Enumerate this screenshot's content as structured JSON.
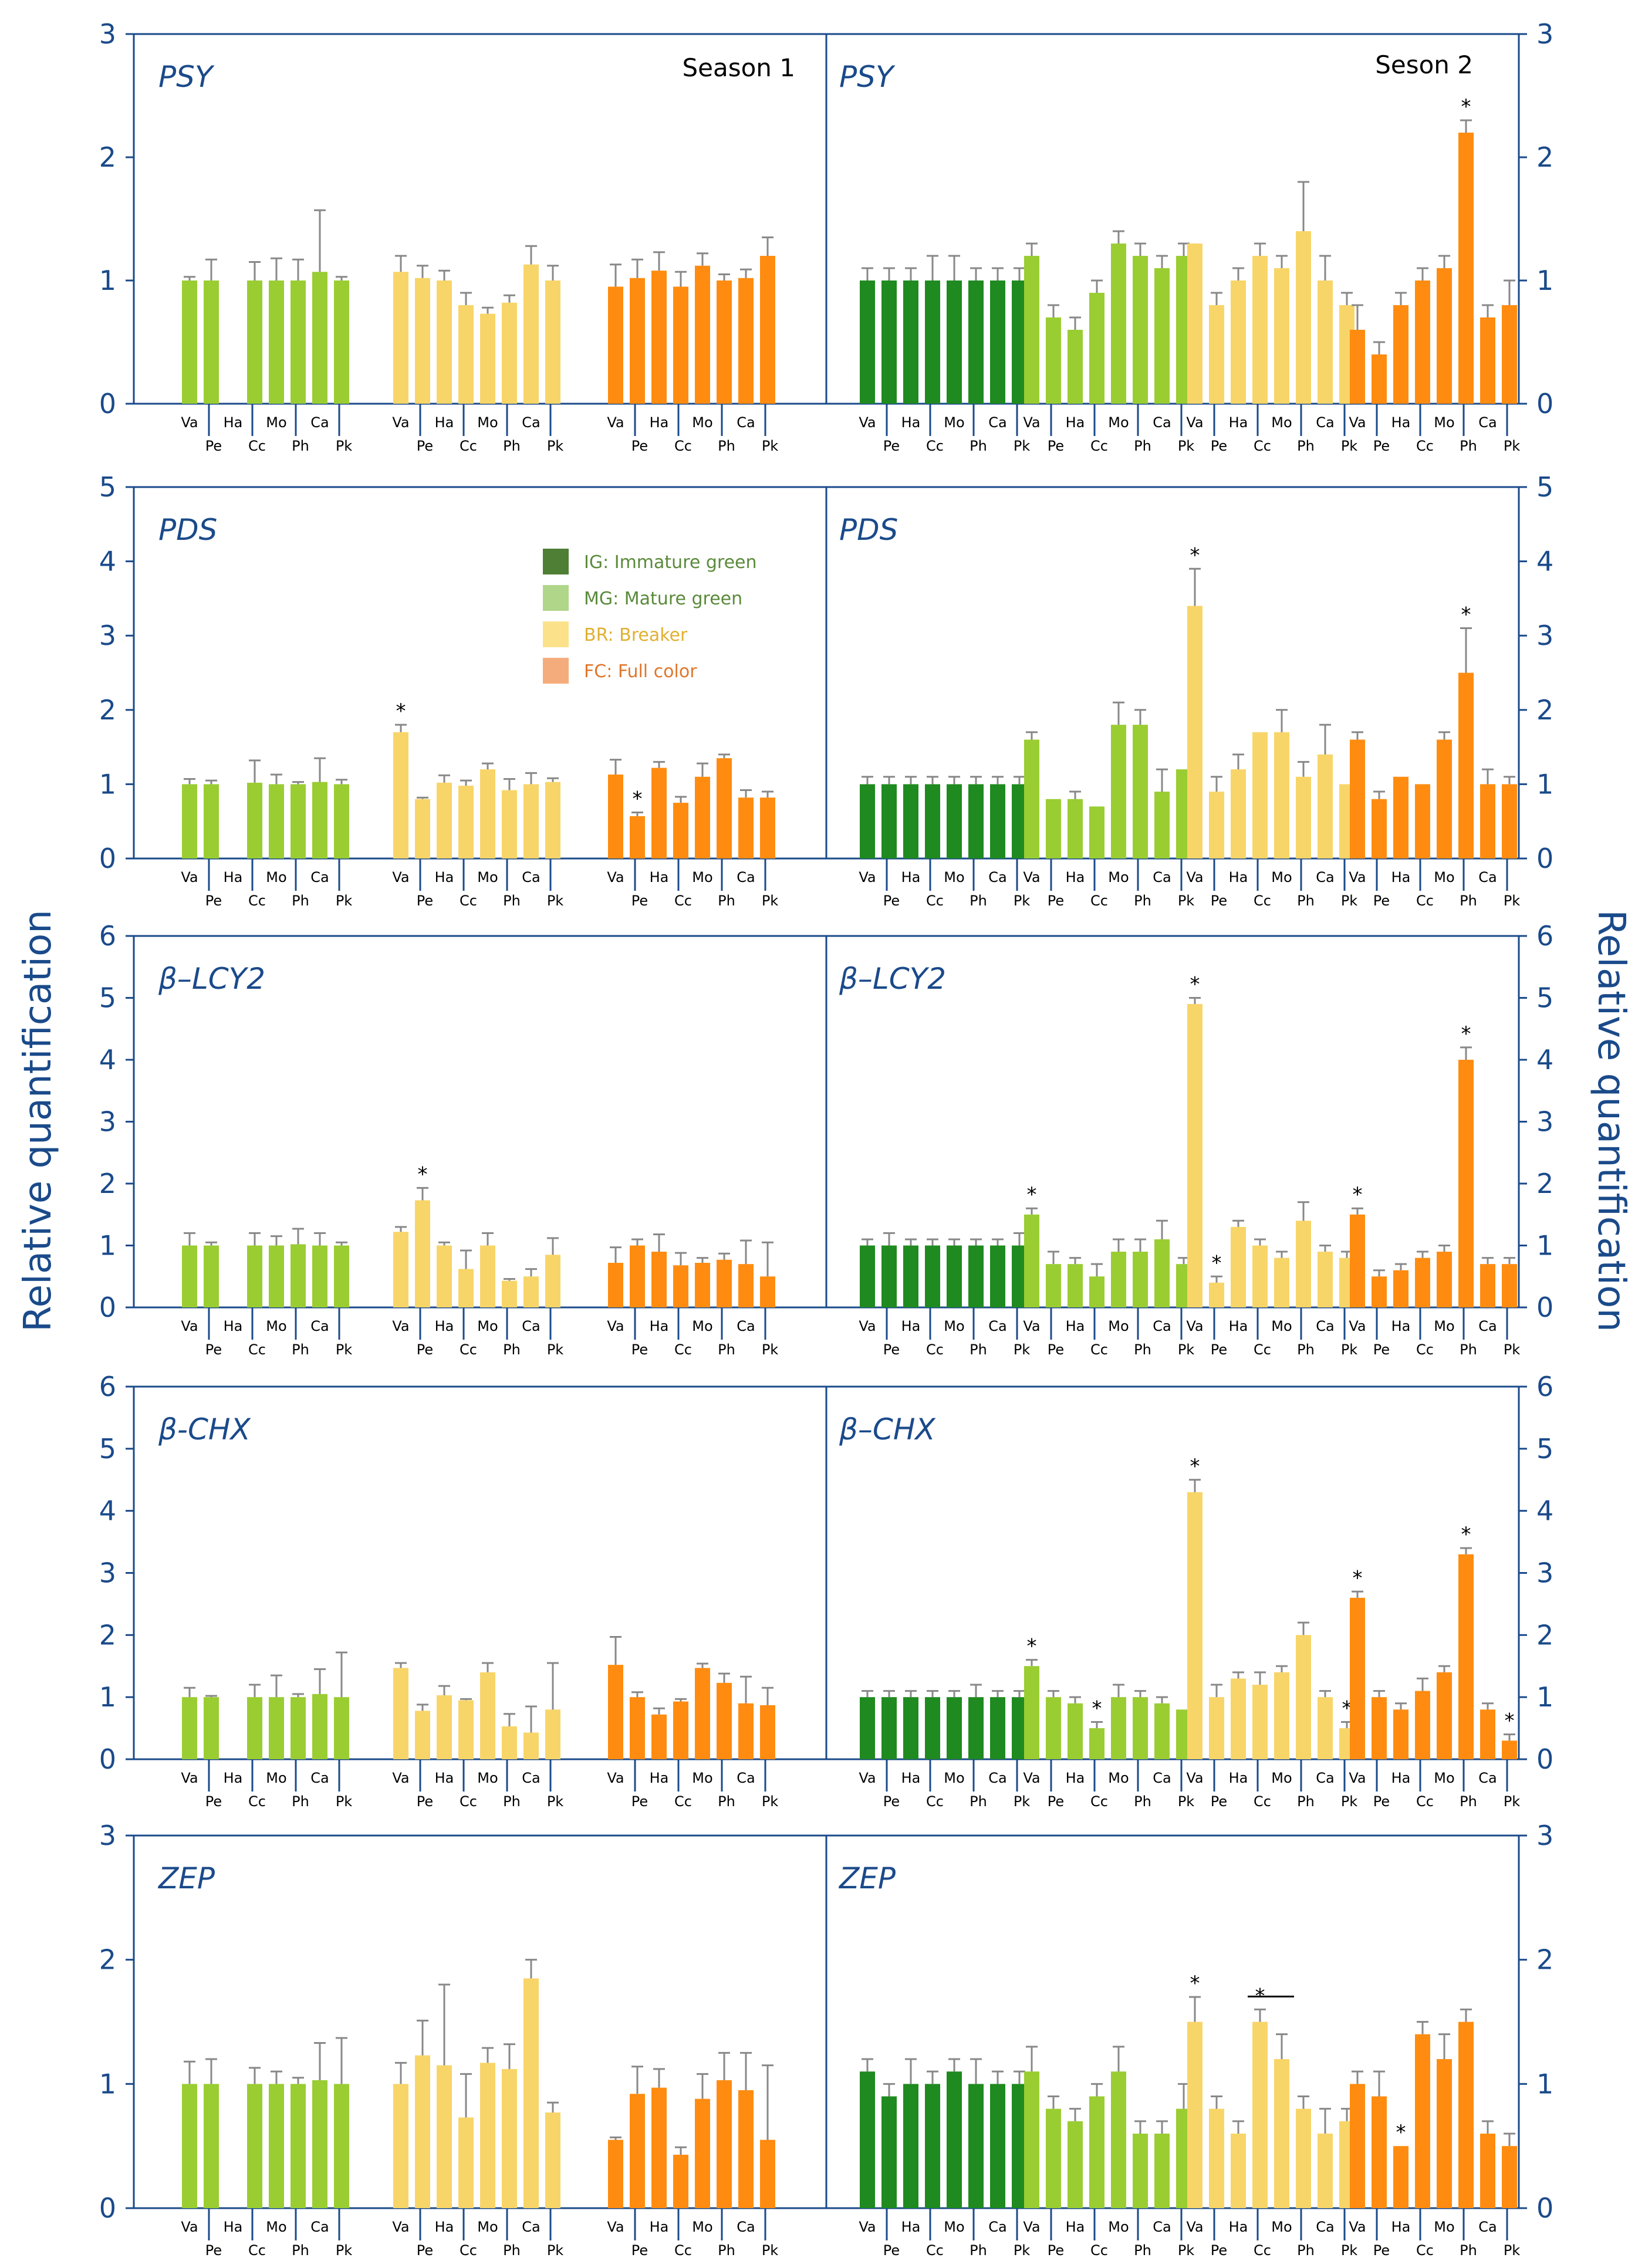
{
  "figure": {
    "ylabel_left": "Relative quantification",
    "ylabel_right": "Relative quantification",
    "season_labels": [
      "Season 1",
      "Seson 2"
    ],
    "category_labels_top": [
      "Va",
      "Ha",
      "Mo",
      "Ca"
    ],
    "category_labels_bottom": [
      "Pe",
      "Cc",
      "Ph",
      "Pk"
    ],
    "legend": [
      {
        "label": "IG: Immature green",
        "color": "#4f7f35",
        "text_color": "#5a8a3a"
      },
      {
        "label": "MG: Mature green",
        "color": "#b0d68a",
        "text_color": "#5a8a3a"
      },
      {
        "label": "BR: Breaker",
        "color": "#fbe28a",
        "text_color": "#e0b030"
      },
      {
        "label": "FC: Full color",
        "color": "#f4ac7c",
        "text_color": "#e0762a"
      }
    ],
    "colors": {
      "IG": "#1f8a1f",
      "MG": "#9acd32",
      "BR": "#f8d568",
      "FC": "#ff8c10",
      "axis": "#1a4a8a",
      "error": "#888888"
    }
  },
  "chart_data": [
    {
      "type": "bar",
      "title": "PSY",
      "ylim": [
        0,
        3
      ],
      "categories": [
        "Va",
        "Pe",
        "Ha",
        "Cc",
        "Mo",
        "Ph",
        "Ca",
        "Pk"
      ],
      "season1": {
        "label": "Season 1",
        "series": [
          {
            "name": "MG",
            "values": [
              1.0,
              1.0,
              null,
              1.0,
              1.0,
              1.0,
              1.07,
              1.0
            ],
            "errors": [
              0.03,
              0.17,
              null,
              0.15,
              0.18,
              0.17,
              0.5,
              0.03
            ],
            "stars": []
          },
          {
            "name": "BR",
            "values": [
              1.07,
              1.02,
              1.0,
              0.8,
              0.73,
              0.82,
              1.13,
              1.0
            ],
            "errors": [
              0.13,
              0.1,
              0.08,
              0.1,
              0.05,
              0.06,
              0.15,
              0.12
            ],
            "stars": []
          },
          {
            "name": "FC",
            "values": [
              0.95,
              1.02,
              1.08,
              0.95,
              1.12,
              1.0,
              1.02,
              1.2
            ],
            "errors": [
              0.18,
              0.15,
              0.15,
              0.12,
              0.1,
              0.05,
              0.07,
              0.15
            ],
            "stars": []
          }
        ]
      },
      "season2": {
        "label": "Seson 2",
        "series": [
          {
            "name": "IG",
            "values": [
              1.0,
              1.0,
              1.0,
              1.0,
              1.0,
              1.0,
              1.0,
              1.0
            ],
            "errors": [
              0.1,
              0.1,
              0.1,
              0.2,
              0.2,
              0.1,
              0.1,
              0.1
            ],
            "stars": []
          },
          {
            "name": "MG",
            "values": [
              1.2,
              0.7,
              0.6,
              0.9,
              1.3,
              1.2,
              1.1,
              1.2
            ],
            "errors": [
              0.1,
              0.1,
              0.1,
              0.1,
              0.1,
              0.1,
              0.1,
              0.1
            ],
            "stars": []
          },
          {
            "name": "BR",
            "values": [
              1.3,
              0.8,
              1.0,
              1.2,
              1.1,
              1.4,
              1.0,
              0.8
            ],
            "errors": [
              0.0,
              0.1,
              0.1,
              0.1,
              0.1,
              0.4,
              0.2,
              0.1
            ],
            "stars": []
          },
          {
            "name": "FC",
            "values": [
              0.6,
              0.4,
              0.8,
              1.0,
              1.1,
              2.2,
              0.7,
              0.8
            ],
            "errors": [
              0.2,
              0.1,
              0.1,
              0.1,
              0.1,
              0.1,
              0.1,
              0.2
            ],
            "stars": [
              5
            ]
          }
        ]
      }
    },
    {
      "type": "bar",
      "title": "PDS",
      "ylim": [
        0,
        5
      ],
      "categories": [
        "Va",
        "Pe",
        "Ha",
        "Cc",
        "Mo",
        "Ph",
        "Ca",
        "Pk"
      ],
      "season1": {
        "series": [
          {
            "name": "MG",
            "values": [
              1.0,
              1.0,
              null,
              1.02,
              1.0,
              1.0,
              1.03,
              1.0
            ],
            "errors": [
              0.07,
              0.05,
              null,
              0.3,
              0.13,
              0.03,
              0.32,
              0.06
            ],
            "stars": []
          },
          {
            "name": "BR",
            "values": [
              1.7,
              0.8,
              1.02,
              0.98,
              1.2,
              0.92,
              1.0,
              1.03
            ],
            "errors": [
              0.1,
              0.02,
              0.1,
              0.07,
              0.08,
              0.15,
              0.15,
              0.05
            ],
            "stars": [
              0
            ]
          },
          {
            "name": "FC",
            "values": [
              1.13,
              0.57,
              1.22,
              0.75,
              1.1,
              1.35,
              0.82,
              0.82
            ],
            "errors": [
              0.2,
              0.05,
              0.08,
              0.08,
              0.18,
              0.05,
              0.1,
              0.08
            ],
            "stars": [
              1
            ]
          }
        ]
      },
      "season2": {
        "series": [
          {
            "name": "IG",
            "values": [
              1.0,
              1.0,
              1.0,
              1.0,
              1.0,
              1.0,
              1.0,
              1.0
            ],
            "errors": [
              0.1,
              0.1,
              0.1,
              0.1,
              0.1,
              0.1,
              0.1,
              0.1
            ],
            "stars": []
          },
          {
            "name": "MG",
            "values": [
              1.6,
              0.8,
              0.8,
              0.7,
              1.8,
              1.8,
              0.9,
              1.2
            ],
            "errors": [
              0.1,
              0.0,
              0.1,
              0.0,
              0.3,
              0.2,
              0.3,
              0.0
            ],
            "stars": []
          },
          {
            "name": "BR",
            "values": [
              3.4,
              0.9,
              1.2,
              1.7,
              1.7,
              1.1,
              1.4,
              1.0
            ],
            "errors": [
              0.5,
              0.2,
              0.2,
              0.0,
              0.3,
              0.2,
              0.4,
              0.0
            ],
            "stars": [
              0
            ]
          },
          {
            "name": "FC",
            "values": [
              1.6,
              0.8,
              1.1,
              1.0,
              1.6,
              2.5,
              1.0,
              1.0
            ],
            "errors": [
              0.1,
              0.1,
              0.0,
              0.0,
              0.1,
              0.6,
              0.2,
              0.1
            ],
            "stars": [
              5
            ]
          }
        ]
      }
    },
    {
      "type": "bar",
      "title": "β–LCY2",
      "ylim": [
        0,
        6
      ],
      "categories": [
        "Va",
        "Pe",
        "Ha",
        "Cc",
        "Mo",
        "Ph",
        "Ca",
        "Pk"
      ],
      "season1": {
        "series": [
          {
            "name": "MG",
            "values": [
              1.0,
              1.0,
              null,
              1.0,
              1.0,
              1.02,
              1.0,
              1.0
            ],
            "errors": [
              0.2,
              0.05,
              null,
              0.2,
              0.15,
              0.25,
              0.2,
              0.05
            ],
            "stars": []
          },
          {
            "name": "BR",
            "values": [
              1.22,
              1.73,
              1.0,
              0.62,
              1.0,
              0.43,
              0.5,
              0.85
            ],
            "errors": [
              0.08,
              0.2,
              0.05,
              0.3,
              0.2,
              0.03,
              0.12,
              0.27
            ],
            "stars": [
              1
            ]
          },
          {
            "name": "FC",
            "values": [
              0.72,
              1.0,
              0.9,
              0.68,
              0.72,
              0.77,
              0.7,
              0.5
            ],
            "errors": [
              0.25,
              0.1,
              0.28,
              0.2,
              0.08,
              0.1,
              0.38,
              0.55
            ],
            "stars": []
          }
        ]
      },
      "season2": {
        "series": [
          {
            "name": "IG",
            "values": [
              1.0,
              1.0,
              1.0,
              1.0,
              1.0,
              1.0,
              1.0,
              1.0
            ],
            "errors": [
              0.1,
              0.2,
              0.1,
              0.1,
              0.1,
              0.1,
              0.1,
              0.2
            ],
            "stars": []
          },
          {
            "name": "MG",
            "values": [
              1.5,
              0.7,
              0.7,
              0.5,
              0.9,
              0.9,
              1.1,
              0.7
            ],
            "errors": [
              0.1,
              0.2,
              0.1,
              0.2,
              0.2,
              0.2,
              0.3,
              0.1
            ],
            "stars": [
              0
            ]
          },
          {
            "name": "BR",
            "values": [
              4.9,
              0.4,
              1.3,
              1.0,
              0.8,
              1.4,
              0.9,
              0.8
            ],
            "errors": [
              0.1,
              0.1,
              0.1,
              0.1,
              0.1,
              0.3,
              0.1,
              0.1
            ],
            "stars": [
              0,
              1
            ]
          },
          {
            "name": "FC",
            "values": [
              1.5,
              0.5,
              0.6,
              0.8,
              0.9,
              4.0,
              0.7,
              0.7
            ],
            "errors": [
              0.1,
              0.1,
              0.1,
              0.1,
              0.1,
              0.2,
              0.1,
              0.1
            ],
            "stars": [
              0,
              5
            ]
          }
        ]
      }
    },
    {
      "type": "bar",
      "title": "β-CHX",
      "title_s2": "β–CHX",
      "ylim": [
        0,
        6
      ],
      "categories": [
        "Va",
        "Pe",
        "Ha",
        "Cc",
        "Mo",
        "Ph",
        "Ca",
        "Pk"
      ],
      "season1": {
        "series": [
          {
            "name": "MG",
            "values": [
              1.0,
              1.0,
              null,
              1.0,
              1.0,
              1.0,
              1.05,
              1.0
            ],
            "errors": [
              0.15,
              0.02,
              null,
              0.2,
              0.35,
              0.05,
              0.4,
              0.72
            ],
            "stars": []
          },
          {
            "name": "BR",
            "values": [
              1.47,
              0.78,
              1.03,
              0.95,
              1.4,
              0.53,
              0.43,
              0.8
            ],
            "errors": [
              0.08,
              0.1,
              0.15,
              0.02,
              0.15,
              0.2,
              0.42,
              0.75
            ],
            "stars": []
          },
          {
            "name": "FC",
            "values": [
              1.52,
              1.0,
              0.72,
              0.93,
              1.47,
              1.23,
              0.9,
              0.87
            ],
            "errors": [
              0.45,
              0.08,
              0.1,
              0.04,
              0.07,
              0.15,
              0.43,
              0.28
            ],
            "stars": []
          }
        ]
      },
      "season2": {
        "series": [
          {
            "name": "IG",
            "values": [
              1.0,
              1.0,
              1.0,
              1.0,
              1.0,
              1.0,
              1.0,
              1.0
            ],
            "errors": [
              0.1,
              0.1,
              0.1,
              0.1,
              0.1,
              0.2,
              0.1,
              0.1
            ],
            "stars": []
          },
          {
            "name": "MG",
            "values": [
              1.5,
              1.0,
              0.9,
              0.5,
              1.0,
              1.0,
              0.9,
              0.8
            ],
            "errors": [
              0.1,
              0.1,
              0.1,
              0.1,
              0.2,
              0.1,
              0.1,
              0.0
            ],
            "stars": [
              0,
              3
            ]
          },
          {
            "name": "BR",
            "values": [
              4.3,
              1.0,
              1.3,
              1.2,
              1.4,
              2.0,
              1.0,
              0.5
            ],
            "errors": [
              0.2,
              0.2,
              0.1,
              0.2,
              0.1,
              0.2,
              0.1,
              0.1
            ],
            "stars": [
              0,
              7
            ]
          },
          {
            "name": "FC",
            "values": [
              2.6,
              1.0,
              0.8,
              1.1,
              1.4,
              3.3,
              0.8,
              0.3
            ],
            "errors": [
              0.1,
              0.1,
              0.1,
              0.2,
              0.1,
              0.1,
              0.1,
              0.1
            ],
            "stars": [
              0,
              5,
              7
            ]
          }
        ]
      }
    },
    {
      "type": "bar",
      "title": "ZEP",
      "ylim": [
        0,
        3
      ],
      "categories": [
        "Va",
        "Pe",
        "Ha",
        "Cc",
        "Mo",
        "Ph",
        "Ca",
        "Pk"
      ],
      "season1": {
        "series": [
          {
            "name": "MG",
            "values": [
              1.0,
              1.0,
              null,
              1.0,
              1.0,
              1.0,
              1.03,
              1.0
            ],
            "errors": [
              0.18,
              0.2,
              null,
              0.13,
              0.1,
              0.05,
              0.3,
              0.37
            ],
            "stars": []
          },
          {
            "name": "BR",
            "values": [
              1.0,
              1.23,
              1.15,
              0.73,
              1.17,
              1.12,
              1.85,
              0.77
            ],
            "errors": [
              0.17,
              0.28,
              0.65,
              0.35,
              0.12,
              0.2,
              0.15,
              0.08
            ],
            "stars": []
          },
          {
            "name": "FC",
            "values": [
              0.55,
              0.92,
              0.97,
              0.43,
              0.88,
              1.03,
              0.95,
              0.55
            ],
            "errors": [
              0.02,
              0.22,
              0.15,
              0.06,
              0.2,
              0.22,
              0.3,
              0.6
            ],
            "stars": []
          }
        ]
      },
      "season2": {
        "series": [
          {
            "name": "IG",
            "values": [
              1.1,
              0.9,
              1.0,
              1.0,
              1.1,
              1.0,
              1.0,
              1.0
            ],
            "errors": [
              0.1,
              0.1,
              0.2,
              0.1,
              0.1,
              0.2,
              0.1,
              0.1
            ],
            "stars": []
          },
          {
            "name": "MG",
            "values": [
              1.1,
              0.8,
              0.7,
              0.9,
              1.1,
              0.6,
              0.6,
              0.8
            ],
            "errors": [
              0.2,
              0.1,
              0.1,
              0.1,
              0.2,
              0.1,
              0.1,
              0.2
            ],
            "stars": []
          },
          {
            "name": "BR",
            "values": [
              1.5,
              0.8,
              0.6,
              1.5,
              1.2,
              0.8,
              0.6,
              0.7
            ],
            "errors": [
              0.2,
              0.1,
              0.1,
              0.1,
              0.2,
              0.1,
              0.2,
              0.1
            ],
            "stars": [
              0,
              3
            ],
            "bracket": [
              3,
              4
            ]
          },
          {
            "name": "FC",
            "values": [
              1.0,
              0.9,
              0.5,
              1.4,
              1.2,
              1.5,
              0.6,
              0.5
            ],
            "errors": [
              0.1,
              0.2,
              0.0,
              0.1,
              0.2,
              0.1,
              0.1,
              0.1
            ],
            "stars": [
              2
            ]
          }
        ]
      }
    }
  ]
}
